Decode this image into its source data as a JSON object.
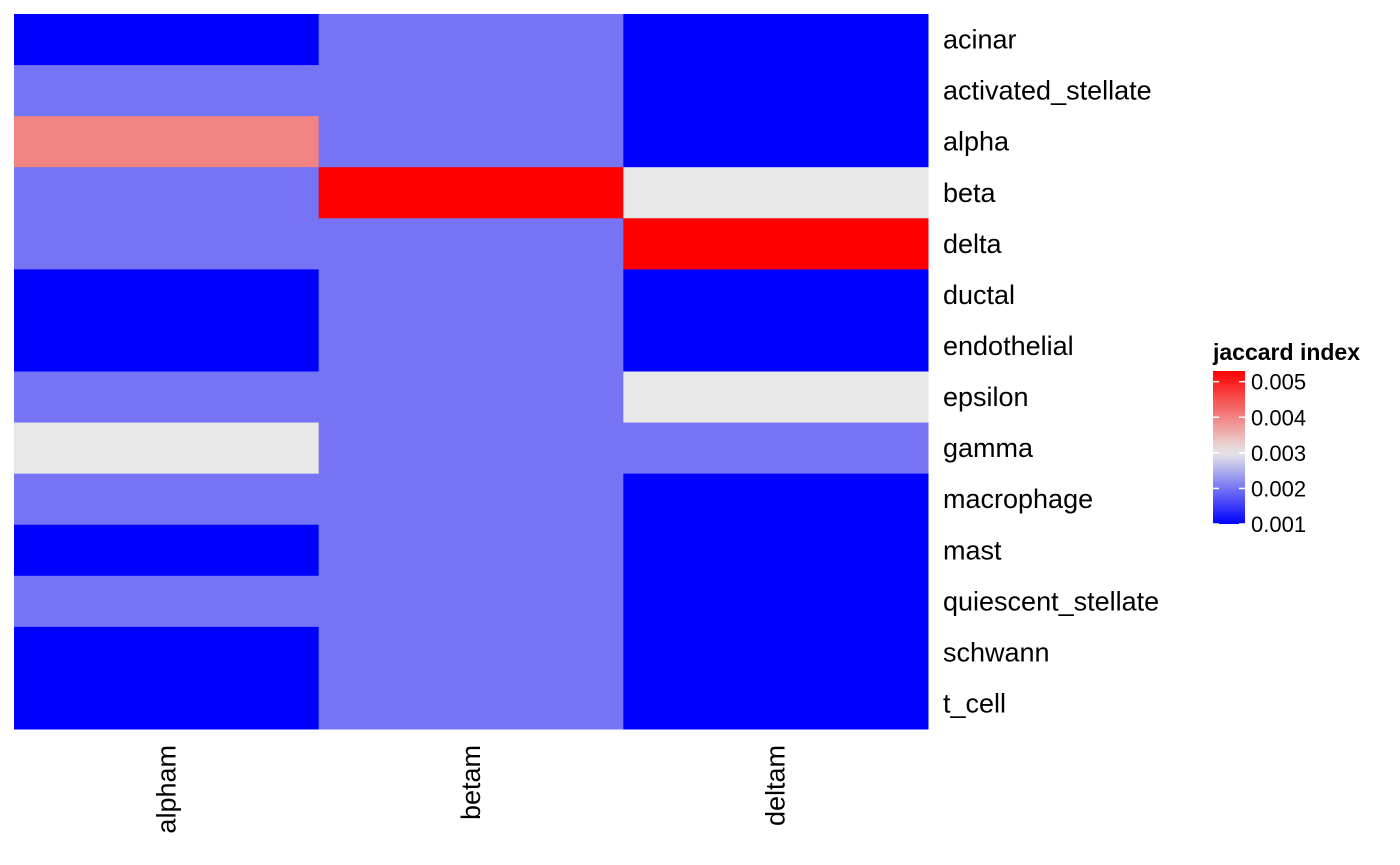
{
  "chart_data": {
    "type": "heatmap",
    "title": "",
    "xlabel": "",
    "ylabel": "",
    "columns": [
      "alpham",
      "betam",
      "deltam"
    ],
    "rows": [
      "acinar",
      "activated_stellate",
      "alpha",
      "beta",
      "delta",
      "ductal",
      "endothelial",
      "epsilon",
      "gamma",
      "macrophage",
      "mast",
      "quiescent_stellate",
      "schwann",
      "t_cell"
    ],
    "values": [
      [
        0.001,
        0.002,
        0.001
      ],
      [
        0.002,
        0.002,
        0.001
      ],
      [
        0.004,
        0.002,
        0.001
      ],
      [
        0.002,
        0.0053,
        0.003
      ],
      [
        0.002,
        0.002,
        0.0053
      ],
      [
        0.001,
        0.002,
        0.001
      ],
      [
        0.001,
        0.002,
        0.001
      ],
      [
        0.002,
        0.002,
        0.003
      ],
      [
        0.003,
        0.002,
        0.002
      ],
      [
        0.002,
        0.002,
        0.001
      ],
      [
        0.001,
        0.002,
        0.001
      ],
      [
        0.002,
        0.002,
        0.001
      ],
      [
        0.001,
        0.002,
        0.001
      ],
      [
        0.001,
        0.002,
        0.001
      ]
    ],
    "legend": {
      "title": "jaccard index",
      "placement": "right",
      "ticks": [
        {
          "value": 0.005,
          "label": "0.005"
        },
        {
          "value": 0.004,
          "label": "0.004"
        },
        {
          "value": 0.003,
          "label": "0.003"
        },
        {
          "value": 0.002,
          "label": "0.002"
        },
        {
          "value": 0.001,
          "label": "0.001"
        }
      ],
      "range": [
        0.001,
        0.0053
      ],
      "midpoint": 0.003
    },
    "colors": {
      "low": "#0000FF",
      "mid": "#E8E8E8",
      "high": "#FF0000"
    },
    "grid": false
  }
}
